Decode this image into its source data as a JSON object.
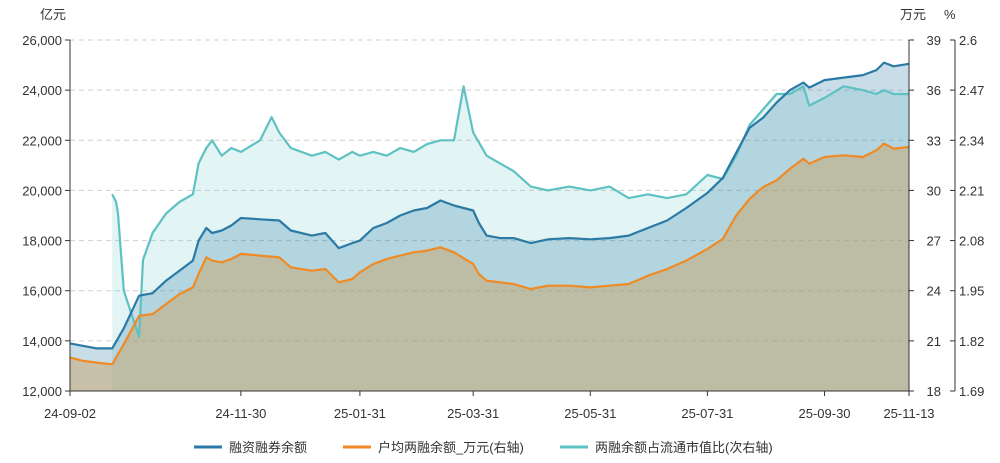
{
  "chart_data": {
    "type": "area",
    "units": {
      "left": "亿元",
      "right_primary": "万元",
      "right_secondary": "%"
    },
    "x_ticks": [
      "24-09-02",
      "24-11-30",
      "25-01-31",
      "25-03-31",
      "25-05-31",
      "25-07-31",
      "25-09-30",
      "25-11-13"
    ],
    "y_left": {
      "ylim": [
        12000,
        26000
      ],
      "ticks": [
        "12,000",
        "14,000",
        "16,000",
        "18,000",
        "20,000",
        "22,000",
        "24,000",
        "26,000"
      ]
    },
    "y_right_primary": {
      "ylim": [
        18,
        39
      ],
      "ticks": [
        "18",
        "21",
        "24",
        "27",
        "30",
        "33",
        "36",
        "39"
      ]
    },
    "y_right_secondary": {
      "ylim": [
        1.69,
        2.6
      ],
      "ticks": [
        "1.69",
        "1.82",
        "1.95",
        "2.08",
        "2.21",
        "2.34",
        "2.47",
        "2.6"
      ]
    },
    "grid": true,
    "legend_position": "bottom-center",
    "series": [
      {
        "name": "融资融券余额",
        "axis": "left",
        "color": "#2b7aa5",
        "points": [
          [
            "2024-09-02",
            13900
          ],
          [
            "2024-09-09",
            13800
          ],
          [
            "2024-09-16",
            13700
          ],
          [
            "2024-09-24",
            13700
          ],
          [
            "2024-09-30",
            14500
          ],
          [
            "2024-10-08",
            15800
          ],
          [
            "2024-10-15",
            15900
          ],
          [
            "2024-10-22",
            16400
          ],
          [
            "2024-10-29",
            16800
          ],
          [
            "2024-11-05",
            17200
          ],
          [
            "2024-11-08",
            18000
          ],
          [
            "2024-11-12",
            18500
          ],
          [
            "2024-11-15",
            18300
          ],
          [
            "2024-11-20",
            18400
          ],
          [
            "2024-11-25",
            18600
          ],
          [
            "2024-11-30",
            18900
          ],
          [
            "2024-12-10",
            18850
          ],
          [
            "2024-12-20",
            18800
          ],
          [
            "2024-12-26",
            18400
          ],
          [
            "2025-01-06",
            18200
          ],
          [
            "2025-01-13",
            18300
          ],
          [
            "2025-01-20",
            17700
          ],
          [
            "2025-01-27",
            17900
          ],
          [
            "2025-01-31",
            18000
          ],
          [
            "2025-02-07",
            18500
          ],
          [
            "2025-02-14",
            18700
          ],
          [
            "2025-02-21",
            19000
          ],
          [
            "2025-02-28",
            19200
          ],
          [
            "2025-03-07",
            19300
          ],
          [
            "2025-03-14",
            19600
          ],
          [
            "2025-03-21",
            19400
          ],
          [
            "2025-03-31",
            19200
          ],
          [
            "2025-04-03",
            18700
          ],
          [
            "2025-04-07",
            18200
          ],
          [
            "2025-04-14",
            18100
          ],
          [
            "2025-04-21",
            18100
          ],
          [
            "2025-04-30",
            17900
          ],
          [
            "2025-05-09",
            18050
          ],
          [
            "2025-05-20",
            18100
          ],
          [
            "2025-05-31",
            18050
          ],
          [
            "2025-06-10",
            18100
          ],
          [
            "2025-06-20",
            18200
          ],
          [
            "2025-06-30",
            18500
          ],
          [
            "2025-07-10",
            18800
          ],
          [
            "2025-07-20",
            19300
          ],
          [
            "2025-07-31",
            19900
          ],
          [
            "2025-08-08",
            20500
          ],
          [
            "2025-08-15",
            21500
          ],
          [
            "2025-08-22",
            22500
          ],
          [
            "2025-08-29",
            22900
          ],
          [
            "2025-09-05",
            23500
          ],
          [
            "2025-09-12",
            24000
          ],
          [
            "2025-09-19",
            24300
          ],
          [
            "2025-09-22",
            24100
          ],
          [
            "2025-09-30",
            24400
          ],
          [
            "2025-10-10",
            24500
          ],
          [
            "2025-10-20",
            24600
          ],
          [
            "2025-10-27",
            24800
          ],
          [
            "2025-10-31",
            25100
          ],
          [
            "2025-11-05",
            24950
          ],
          [
            "2025-11-13",
            25050
          ]
        ]
      },
      {
        "name": "户均两融余额_万元(右轴)",
        "axis": "right_primary",
        "color": "#f08a24",
        "points": [
          [
            "2024-09-02",
            20.0
          ],
          [
            "2024-09-09",
            19.8
          ],
          [
            "2024-09-16",
            19.7
          ],
          [
            "2024-09-24",
            19.6
          ],
          [
            "2024-09-30",
            20.8
          ],
          [
            "2024-10-08",
            22.5
          ],
          [
            "2024-10-15",
            22.6
          ],
          [
            "2024-10-22",
            23.2
          ],
          [
            "2024-10-29",
            23.8
          ],
          [
            "2024-11-05",
            24.2
          ],
          [
            "2024-11-08",
            25.0
          ],
          [
            "2024-11-12",
            26.0
          ],
          [
            "2024-11-15",
            25.8
          ],
          [
            "2024-11-20",
            25.7
          ],
          [
            "2024-11-25",
            25.9
          ],
          [
            "2024-11-30",
            26.2
          ],
          [
            "2024-12-10",
            26.1
          ],
          [
            "2024-12-20",
            26.0
          ],
          [
            "2024-12-26",
            25.4
          ],
          [
            "2025-01-06",
            25.2
          ],
          [
            "2025-01-13",
            25.3
          ],
          [
            "2025-01-20",
            24.5
          ],
          [
            "2025-01-27",
            24.7
          ],
          [
            "2025-01-31",
            25.1
          ],
          [
            "2025-02-07",
            25.6
          ],
          [
            "2025-02-14",
            25.9
          ],
          [
            "2025-02-21",
            26.1
          ],
          [
            "2025-02-28",
            26.3
          ],
          [
            "2025-03-07",
            26.4
          ],
          [
            "2025-03-14",
            26.6
          ],
          [
            "2025-03-21",
            26.3
          ],
          [
            "2025-03-31",
            25.6
          ],
          [
            "2025-04-03",
            25.0
          ],
          [
            "2025-04-07",
            24.6
          ],
          [
            "2025-04-14",
            24.5
          ],
          [
            "2025-04-21",
            24.4
          ],
          [
            "2025-04-30",
            24.1
          ],
          [
            "2025-05-09",
            24.3
          ],
          [
            "2025-05-20",
            24.3
          ],
          [
            "2025-05-31",
            24.2
          ],
          [
            "2025-06-10",
            24.3
          ],
          [
            "2025-06-20",
            24.4
          ],
          [
            "2025-06-30",
            24.9
          ],
          [
            "2025-07-10",
            25.3
          ],
          [
            "2025-07-20",
            25.8
          ],
          [
            "2025-07-31",
            26.5
          ],
          [
            "2025-08-08",
            27.1
          ],
          [
            "2025-08-15",
            28.5
          ],
          [
            "2025-08-22",
            29.5
          ],
          [
            "2025-08-29",
            30.2
          ],
          [
            "2025-09-05",
            30.6
          ],
          [
            "2025-09-12",
            31.3
          ],
          [
            "2025-09-19",
            31.9
          ],
          [
            "2025-09-22",
            31.6
          ],
          [
            "2025-09-30",
            32.0
          ],
          [
            "2025-10-10",
            32.1
          ],
          [
            "2025-10-20",
            32.0
          ],
          [
            "2025-10-27",
            32.4
          ],
          [
            "2025-10-31",
            32.8
          ],
          [
            "2025-11-05",
            32.5
          ],
          [
            "2025-11-13",
            32.6
          ]
        ]
      },
      {
        "name": "两融余额占流通市值比(次右轴)",
        "axis": "right_secondary",
        "color": "#5ec1c2",
        "points": [
          [
            "2024-09-24",
            2.2
          ],
          [
            "2024-09-26",
            2.18
          ],
          [
            "2024-09-27",
            2.15
          ],
          [
            "2024-09-30",
            1.95
          ],
          [
            "2024-10-08",
            1.83
          ],
          [
            "2024-10-10",
            2.03
          ],
          [
            "2024-10-15",
            2.1
          ],
          [
            "2024-10-22",
            2.15
          ],
          [
            "2024-10-29",
            2.18
          ],
          [
            "2024-11-05",
            2.2
          ],
          [
            "2024-11-08",
            2.28
          ],
          [
            "2024-11-12",
            2.32
          ],
          [
            "2024-11-15",
            2.34
          ],
          [
            "2024-11-20",
            2.3
          ],
          [
            "2024-11-25",
            2.32
          ],
          [
            "2024-11-30",
            2.31
          ],
          [
            "2024-12-10",
            2.34
          ],
          [
            "2024-12-16",
            2.4
          ],
          [
            "2024-12-20",
            2.36
          ],
          [
            "2024-12-26",
            2.32
          ],
          [
            "2025-01-06",
            2.3
          ],
          [
            "2025-01-13",
            2.31
          ],
          [
            "2025-01-20",
            2.29
          ],
          [
            "2025-01-27",
            2.31
          ],
          [
            "2025-01-31",
            2.3
          ],
          [
            "2025-02-07",
            2.31
          ],
          [
            "2025-02-14",
            2.3
          ],
          [
            "2025-02-21",
            2.32
          ],
          [
            "2025-02-28",
            2.31
          ],
          [
            "2025-03-07",
            2.33
          ],
          [
            "2025-03-14",
            2.34
          ],
          [
            "2025-03-21",
            2.34
          ],
          [
            "2025-03-26",
            2.48
          ],
          [
            "2025-03-31",
            2.36
          ],
          [
            "2025-04-07",
            2.3
          ],
          [
            "2025-04-14",
            2.28
          ],
          [
            "2025-04-21",
            2.26
          ],
          [
            "2025-04-30",
            2.22
          ],
          [
            "2025-05-09",
            2.21
          ],
          [
            "2025-05-20",
            2.22
          ],
          [
            "2025-05-31",
            2.21
          ],
          [
            "2025-06-10",
            2.22
          ],
          [
            "2025-06-20",
            2.19
          ],
          [
            "2025-06-30",
            2.2
          ],
          [
            "2025-07-10",
            2.19
          ],
          [
            "2025-07-20",
            2.2
          ],
          [
            "2025-07-31",
            2.25
          ],
          [
            "2025-08-08",
            2.24
          ],
          [
            "2025-08-15",
            2.3
          ],
          [
            "2025-08-22",
            2.38
          ],
          [
            "2025-08-29",
            2.42
          ],
          [
            "2025-09-05",
            2.46
          ],
          [
            "2025-09-12",
            2.46
          ],
          [
            "2025-09-19",
            2.48
          ],
          [
            "2025-09-22",
            2.43
          ],
          [
            "2025-09-30",
            2.45
          ],
          [
            "2025-10-10",
            2.48
          ],
          [
            "2025-10-20",
            2.47
          ],
          [
            "2025-10-27",
            2.46
          ],
          [
            "2025-10-31",
            2.47
          ],
          [
            "2025-11-05",
            2.46
          ],
          [
            "2025-11-13",
            2.46
          ]
        ]
      }
    ]
  }
}
